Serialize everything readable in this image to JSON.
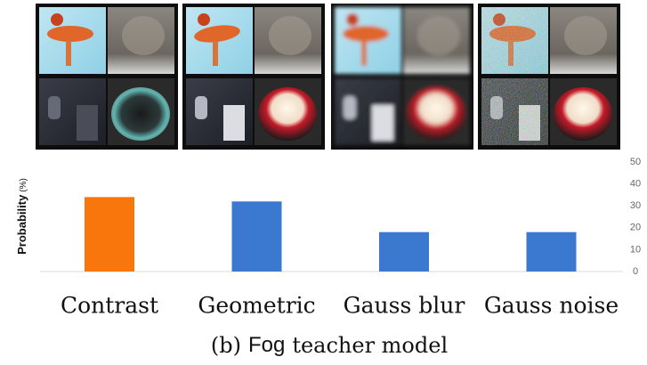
{
  "chart_data": {
    "type": "bar",
    "y_label": "Probability",
    "y_label_unit": "(%)",
    "categories": [
      "Contrast",
      "Geometric",
      "Gauss blur",
      "Gauss noise"
    ],
    "values": [
      34,
      32,
      18,
      18
    ],
    "colors": [
      "#f8760c",
      "#3b78cf",
      "#3b78cf",
      "#3b78cf"
    ],
    "ylim": [
      0,
      50
    ],
    "yticks": [
      0,
      10,
      20,
      30,
      40,
      50
    ],
    "grid": false,
    "caption_parts": [
      "(b)",
      "Fog",
      "teacher model"
    ]
  }
}
